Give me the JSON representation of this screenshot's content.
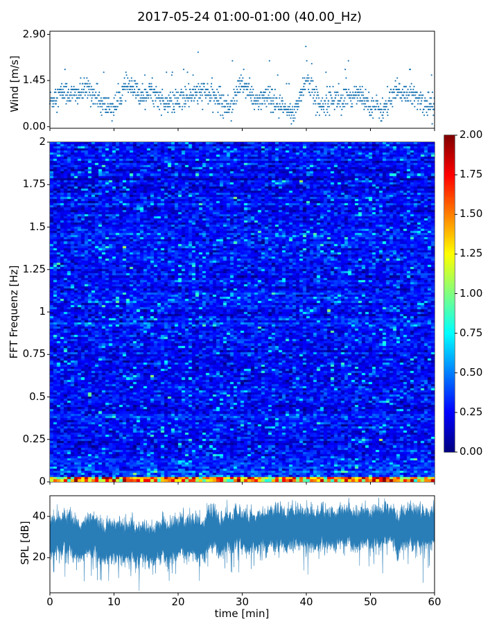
{
  "title": "2017-05-24 01:00-01:00 (40.00_Hz)",
  "chart_data": [
    {
      "type": "scatter",
      "ylabel": "Wind [m/s]",
      "ylim": [
        -0.05,
        3.0
      ],
      "xlim": [
        0,
        60
      ],
      "y_ticks": [
        "0.00",
        "1.45",
        "2.90"
      ],
      "y_tick_values": [
        0.0,
        1.45,
        2.9
      ],
      "point_color": "#1f77b4",
      "approx_profile": {
        "x_min": [
          0,
          2,
          4,
          6,
          8,
          10,
          12,
          14,
          16,
          18,
          20,
          22,
          24,
          26,
          28,
          30,
          32,
          34,
          36,
          38,
          40,
          42,
          44,
          46,
          48,
          50,
          52,
          54,
          56,
          58,
          60
        ],
        "wind_m_s": [
          0.8,
          1.1,
          1.0,
          1.2,
          0.7,
          0.6,
          1.3,
          1.0,
          1.1,
          0.7,
          0.8,
          1.0,
          1.1,
          0.9,
          0.6,
          1.4,
          0.8,
          0.9,
          0.6,
          0.4,
          1.5,
          0.7,
          0.9,
          0.8,
          1.1,
          0.7,
          0.5,
          1.1,
          1.0,
          0.8,
          0.6
        ]
      }
    },
    {
      "type": "heatmap",
      "ylabel": "FFT Frequenz [Hz]",
      "xlim": [
        0,
        60
      ],
      "ylim": [
        0,
        2
      ],
      "y_ticks": [
        "0",
        "0.25",
        "0.5",
        "0.75",
        "1",
        "1.25",
        "1.5",
        "1.75",
        "2"
      ],
      "y_tick_values": [
        0,
        0.25,
        0.5,
        0.75,
        1,
        1.25,
        1.5,
        1.75,
        2
      ],
      "colormap": "jet",
      "colorbar_range": [
        0.0,
        2.0
      ],
      "colorbar_ticks": [
        "0.00",
        "0.25",
        "0.50",
        "0.75",
        "1.00",
        "1.25",
        "1.50",
        "1.75",
        "2.00"
      ],
      "colorbar_tick_values": [
        0,
        0.25,
        0.5,
        0.75,
        1,
        1.25,
        1.5,
        1.75,
        2
      ],
      "typical_value": 0.25
    },
    {
      "type": "area",
      "ylabel": "SPL [dB]",
      "xlabel": "time [min]",
      "xlim": [
        0,
        60
      ],
      "ylim": [
        3,
        50
      ],
      "x_ticks": [
        "0",
        "10",
        "20",
        "30",
        "40",
        "50",
        "60"
      ],
      "x_tick_values": [
        0,
        10,
        20,
        30,
        40,
        50,
        60
      ],
      "y_ticks": [
        "20",
        "40"
      ],
      "y_tick_values": [
        20,
        40
      ],
      "fill_color": "#1f77b4",
      "approx_profile": {
        "x_min": [
          0,
          5,
          10,
          15,
          20,
          25,
          30,
          35,
          40,
          45,
          50,
          55,
          60
        ],
        "spl_db": [
          31,
          29,
          29,
          27,
          30,
          32,
          33,
          35,
          36,
          34,
          35,
          36,
          36
        ]
      }
    }
  ]
}
